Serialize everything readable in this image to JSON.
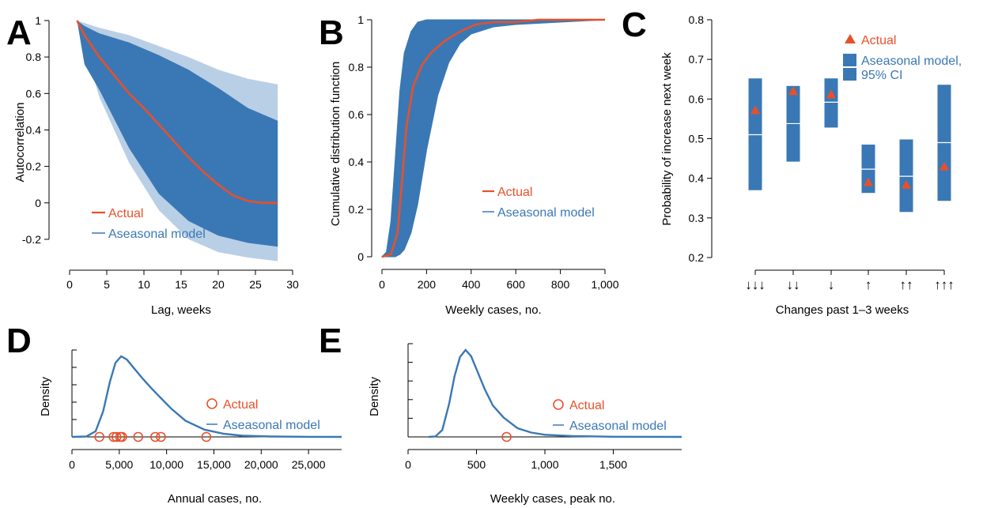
{
  "colors": {
    "actual": "#e8502a",
    "model": "#3a78b5",
    "model_light": "#b9cfe6",
    "axis": "#000000"
  },
  "chart_data": [
    {
      "panel": "A",
      "type": "line",
      "xlabel": "Lag, weeks",
      "ylabel": "Autocorrelation",
      "xlim": [
        0,
        30
      ],
      "ylim": [
        -0.3,
        1
      ],
      "xticks": [
        "0",
        "5",
        "10",
        "15",
        "20",
        "25",
        "30"
      ],
      "yticks": [
        "-0.2",
        "0",
        "0.2",
        "0.4",
        "0.6",
        "0.8",
        "1"
      ],
      "legend": [
        "Actual",
        "Aseasonal model"
      ],
      "actual": {
        "x": [
          1,
          2,
          4,
          6,
          8,
          10,
          12,
          14,
          16,
          18,
          20,
          22,
          24,
          26,
          28
        ],
        "y": [
          1,
          0.92,
          0.8,
          0.7,
          0.6,
          0.52,
          0.43,
          0.34,
          0.25,
          0.17,
          0.1,
          0.04,
          0.01,
          0,
          0
        ]
      },
      "model_band": {
        "x": [
          1,
          2,
          4,
          8,
          12,
          16,
          20,
          24,
          28
        ],
        "lower": [
          1,
          0.76,
          0.62,
          0.3,
          0.05,
          -0.1,
          -0.18,
          -0.22,
          -0.24
        ],
        "upper": [
          1,
          0.97,
          0.93,
          0.88,
          0.81,
          0.73,
          0.63,
          0.52,
          0.45
        ]
      },
      "model_outer": {
        "x": [
          1,
          4,
          8,
          12,
          16,
          20,
          24,
          28
        ],
        "lower": [
          1,
          0.58,
          0.22,
          -0.04,
          -0.2,
          -0.27,
          -0.3,
          -0.32
        ],
        "upper": [
          1,
          0.96,
          0.92,
          0.86,
          0.8,
          0.73,
          0.68,
          0.65
        ]
      }
    },
    {
      "panel": "B",
      "type": "line",
      "xlabel": "Weekly cases, no.",
      "ylabel": "Cumulative distribution function",
      "xlim": [
        0,
        1000
      ],
      "ylim": [
        0,
        1
      ],
      "xticks": [
        "0",
        "200",
        "400",
        "600",
        "800",
        "1,000"
      ],
      "yticks": [
        "0",
        "0.2",
        "0.4",
        "0.6",
        "0.8",
        "1"
      ],
      "legend": [
        "Actual",
        "Aseasonal model"
      ],
      "actual": {
        "x": [
          0,
          40,
          70,
          90,
          110,
          140,
          180,
          220,
          280,
          350,
          420,
          500,
          600,
          700,
          800,
          1000
        ],
        "y": [
          0,
          0.01,
          0.1,
          0.32,
          0.55,
          0.72,
          0.81,
          0.86,
          0.91,
          0.95,
          0.98,
          0.99,
          0.99,
          1,
          1,
          1
        ]
      },
      "model_band": {
        "x": [
          0,
          20,
          40,
          60,
          80,
          100,
          130,
          160,
          200,
          250,
          300,
          350,
          400,
          500,
          600,
          800,
          1000
        ],
        "left": [
          0,
          0.02,
          0.15,
          0.42,
          0.7,
          0.86,
          0.95,
          0.99,
          1,
          1,
          1,
          1,
          1,
          1,
          1,
          1,
          1
        ],
        "right": [
          0,
          0,
          0,
          0,
          0.01,
          0.03,
          0.1,
          0.22,
          0.45,
          0.68,
          0.82,
          0.9,
          0.94,
          0.97,
          0.98,
          0.99,
          1
        ]
      }
    },
    {
      "panel": "C",
      "type": "bar",
      "xlabel": "Changes past 1–3 weeks",
      "ylabel": "Probability of increase next week",
      "ylim": [
        0.2,
        0.8
      ],
      "yticks": [
        "0.2",
        "0.3",
        "0.4",
        "0.5",
        "0.6",
        "0.7",
        "0.8"
      ],
      "categories": [
        "↓↓↓",
        "↓↓",
        "↓",
        "↑",
        "↑↑",
        "↑↑↑"
      ],
      "ci_low": [
        0.37,
        0.442,
        0.528,
        0.363,
        0.315,
        0.343
      ],
      "ci_high": [
        0.652,
        0.633,
        0.652,
        0.485,
        0.498,
        0.636
      ],
      "median": [
        0.51,
        0.538,
        0.592,
        0.423,
        0.405,
        0.49
      ],
      "actual": [
        0.572,
        0.62,
        0.612,
        0.39,
        0.384,
        0.43
      ],
      "legend": {
        "actual": "Actual",
        "model_line1": "Aseasonal model,",
        "model_line2": "95% CI"
      }
    },
    {
      "panel": "D",
      "type": "area",
      "xlabel": "Annual cases, no.",
      "ylabel": "Density",
      "xlim": [
        0,
        28500
      ],
      "xticks": [
        "0",
        "5,000",
        "10,000",
        "15,000",
        "20,000",
        "25,000"
      ],
      "legend": [
        "Actual",
        "Aseasonal model"
      ],
      "density": {
        "x": [
          0,
          1500,
          2500,
          3300,
          4000,
          4600,
          5200,
          5800,
          6500,
          7500,
          8500,
          9500,
          10500,
          12000,
          14000,
          16000,
          18000,
          21000,
          25000,
          28500
        ],
        "y": [
          0,
          0.005,
          0.07,
          0.32,
          0.68,
          0.92,
          1,
          0.96,
          0.86,
          0.72,
          0.59,
          0.47,
          0.35,
          0.2,
          0.09,
          0.04,
          0.015,
          0.005,
          0.001,
          0
        ]
      },
      "actual_points": [
        2900,
        4400,
        4700,
        5100,
        5300,
        7000,
        8800,
        9400,
        14200
      ]
    },
    {
      "panel": "E",
      "type": "area",
      "xlabel": "Weekly cases, peak no.",
      "ylabel": "Density",
      "xlim": [
        0,
        2000
      ],
      "xticks": [
        "0",
        "500",
        "1,000",
        "1,500"
      ],
      "legend": [
        "Actual",
        "Aseasonal model"
      ],
      "density": {
        "x": [
          150,
          200,
          250,
          300,
          340,
          380,
          420,
          460,
          500,
          560,
          620,
          700,
          800,
          900,
          1000,
          1200,
          1500,
          2000
        ],
        "y": [
          0,
          0.005,
          0.08,
          0.38,
          0.7,
          0.92,
          1,
          0.93,
          0.78,
          0.55,
          0.36,
          0.22,
          0.1,
          0.05,
          0.025,
          0.01,
          0.002,
          0
        ]
      },
      "actual_points": [
        720
      ]
    }
  ]
}
